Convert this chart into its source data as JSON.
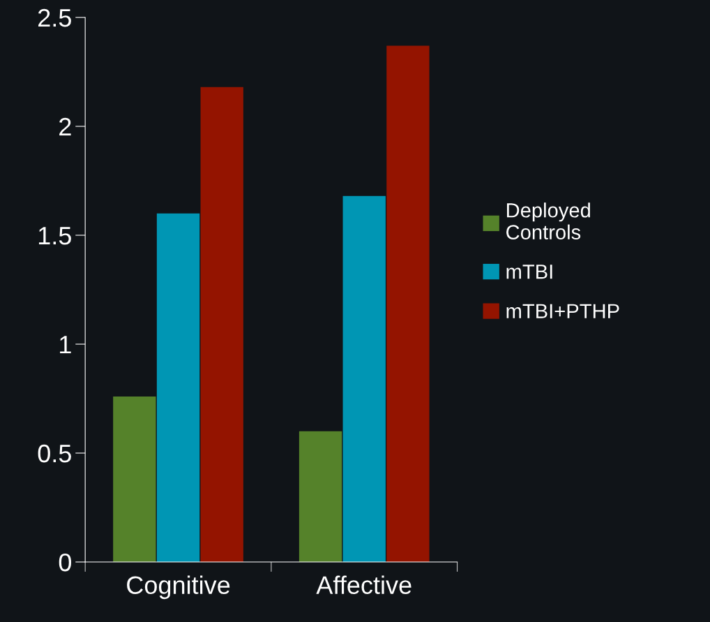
{
  "chart_data": {
    "type": "bar",
    "categories": [
      "Cognitive",
      "Affective"
    ],
    "series": [
      {
        "name": "Deployed Controls",
        "color": "#55822a",
        "values": [
          0.76,
          0.6
        ]
      },
      {
        "name": "mTBI",
        "color": "#0096b4",
        "values": [
          1.6,
          1.68
        ]
      },
      {
        "name": "mTBI+PTHP",
        "color": "#941400",
        "values": [
          2.18,
          2.37
        ]
      }
    ],
    "ylim": [
      0,
      2.5
    ],
    "yticks": [
      0,
      0.5,
      1,
      1.5,
      2,
      2.5
    ],
    "grid": false,
    "legend": "right"
  }
}
